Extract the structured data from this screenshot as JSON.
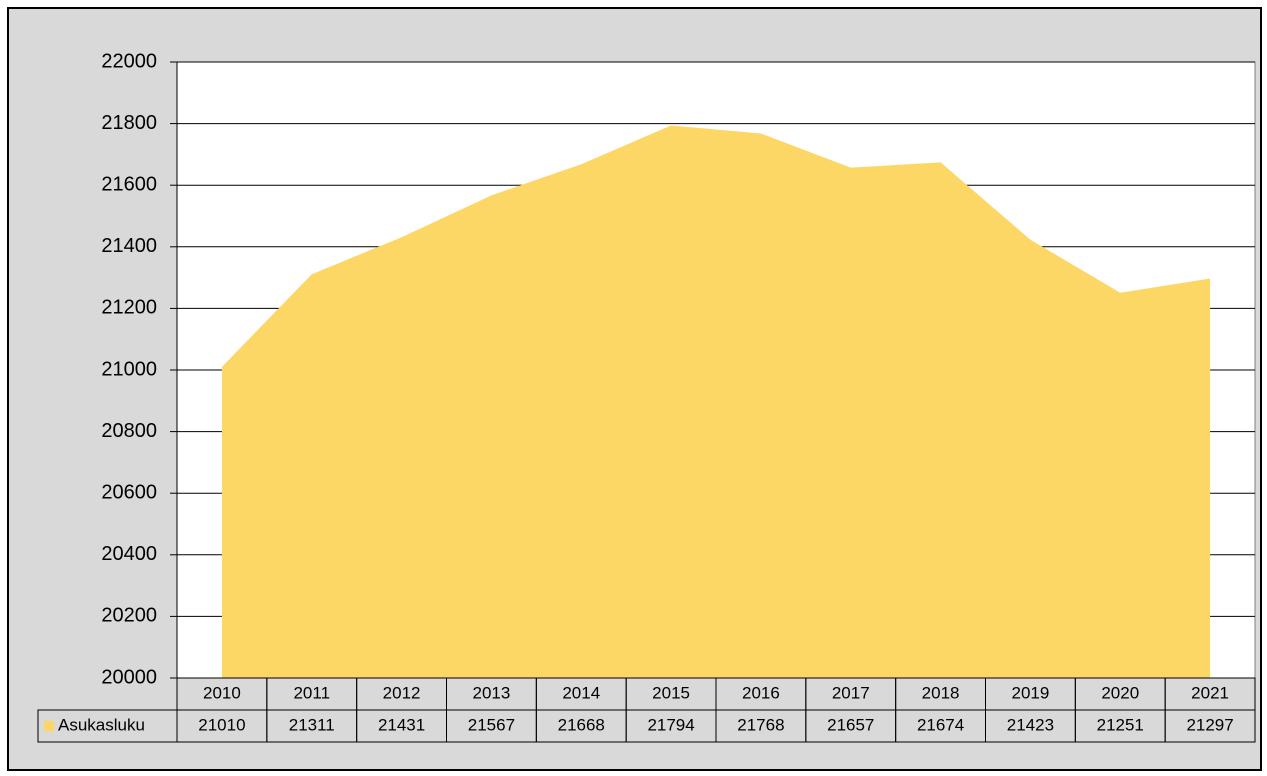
{
  "chart_data": {
    "type": "area",
    "categories": [
      "2010",
      "2011",
      "2012",
      "2013",
      "2014",
      "2015",
      "2016",
      "2017",
      "2018",
      "2019",
      "2020",
      "2021"
    ],
    "series": [
      {
        "name": "Asukasluku",
        "color": "#fdd766",
        "values": [
          21010,
          21311,
          21431,
          21567,
          21668,
          21794,
          21768,
          21657,
          21674,
          21423,
          21251,
          21297
        ]
      }
    ],
    "ylim": [
      20000,
      22000
    ],
    "yticks": [
      20000,
      20200,
      20400,
      20600,
      20800,
      21000,
      21200,
      21400,
      21600,
      21800,
      22000
    ],
    "grid": true,
    "data_table": true
  }
}
